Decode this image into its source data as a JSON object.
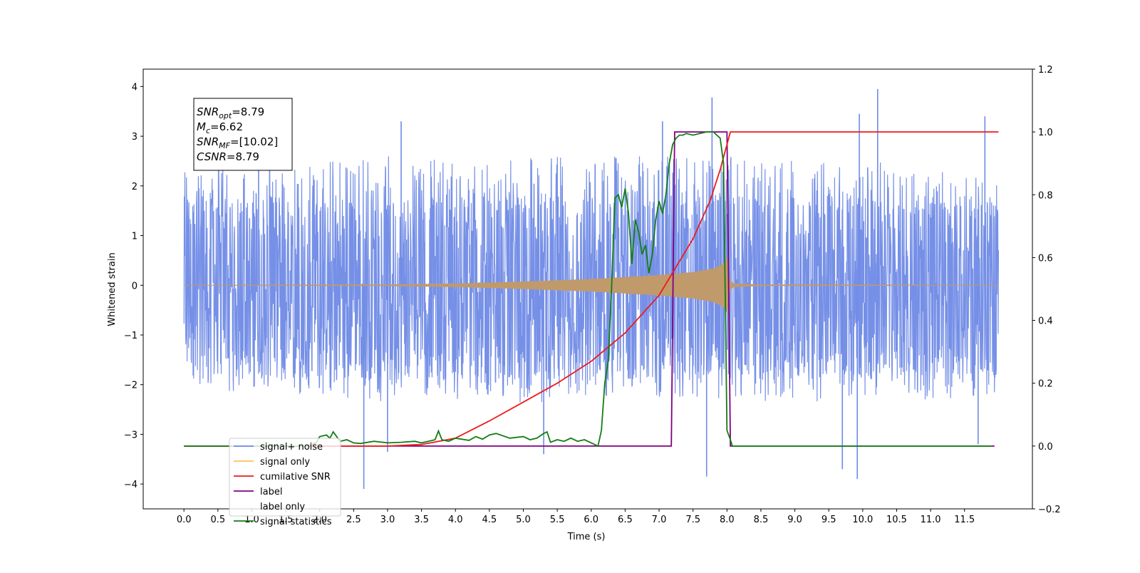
{
  "chart_data": {
    "type": "line",
    "title": "",
    "xlabel": "Time (s)",
    "ylabel": "Whitened strain",
    "xlim": [
      -0.6,
      12.5
    ],
    "ylim": [
      -4.5,
      4.35
    ],
    "y2lim": [
      -0.2,
      1.2
    ],
    "x_ticks": [
      0.0,
      0.5,
      1.0,
      1.5,
      2.0,
      2.5,
      3.0,
      3.5,
      4.0,
      4.5,
      5.0,
      5.5,
      6.0,
      6.5,
      7.0,
      7.5,
      8.0,
      8.5,
      9.0,
      9.5,
      10.0,
      10.5,
      11.0,
      11.5
    ],
    "x_tick_labels": [
      "0.0",
      "0.5",
      "1.0",
      "1.5",
      "2.0",
      "2.5",
      "3.0",
      "3.5",
      "4.0",
      "4.5",
      "5.0",
      "5.5",
      "6.0",
      "6.5",
      "7.0",
      "7.5",
      "8.0",
      "8.5",
      "9.0",
      "9.5",
      "10.0",
      "10.5",
      "11.0",
      "11.5"
    ],
    "y_ticks": [
      -4,
      -3,
      -2,
      -1,
      0,
      1,
      2,
      3,
      4
    ],
    "y_tick_labels": [
      "−4",
      "−3",
      "−2",
      "−1",
      "0",
      "1",
      "2",
      "3",
      "4"
    ],
    "y2_ticks": [
      -0.2,
      0.0,
      0.2,
      0.4,
      0.6,
      0.8,
      1.0,
      1.2
    ],
    "y2_tick_labels": [
      "−0.2",
      "0.0",
      "0.2",
      "0.4",
      "0.6",
      "0.8",
      "1.0",
      "1.2"
    ],
    "legend_position": "lower-left",
    "series": [
      {
        "name": "signal+ noise",
        "axis": "left",
        "color": "#6f8ae6",
        "x_range": [
          0.0,
          12.0
        ],
        "typical_band": [
          -1.9,
          1.8
        ],
        "envelope": [
          [
            0.0,
            -2.0,
            2.4
          ],
          [
            1.0,
            -2.2,
            2.5
          ],
          [
            2.0,
            -2.3,
            2.5
          ],
          [
            3.0,
            -2.4,
            2.6
          ],
          [
            4.0,
            -2.3,
            2.5
          ],
          [
            5.0,
            -2.4,
            2.6
          ],
          [
            6.0,
            -2.3,
            2.6
          ],
          [
            7.0,
            -2.3,
            2.6
          ],
          [
            8.0,
            -2.3,
            2.6
          ],
          [
            9.0,
            -2.4,
            2.5
          ],
          [
            10.0,
            -2.3,
            2.5
          ],
          [
            11.0,
            -2.3,
            2.5
          ],
          [
            12.0,
            -2.2,
            2.4
          ]
        ],
        "extreme_samples": [
          [
            1.1,
            2.75
          ],
          [
            2.65,
            -4.1
          ],
          [
            3.0,
            -3.35
          ],
          [
            3.2,
            3.3
          ],
          [
            5.3,
            -3.4
          ],
          [
            7.05,
            3.3
          ],
          [
            7.78,
            3.78
          ],
          [
            7.7,
            -3.85
          ],
          [
            9.7,
            -3.7
          ],
          [
            9.92,
            -3.9
          ],
          [
            9.95,
            3.45
          ],
          [
            10.22,
            3.95
          ],
          [
            11.8,
            3.4
          ],
          [
            11.7,
            -3.2
          ]
        ]
      },
      {
        "name": "signal only",
        "axis": "left",
        "color": "#c09a6b",
        "envelope": [
          [
            0.0,
            0.0
          ],
          [
            3.0,
            0.01
          ],
          [
            4.0,
            0.03
          ],
          [
            5.0,
            0.07
          ],
          [
            6.0,
            0.12
          ],
          [
            6.5,
            0.16
          ],
          [
            7.0,
            0.2
          ],
          [
            7.5,
            0.26
          ],
          [
            7.8,
            0.33
          ],
          [
            7.95,
            0.43
          ],
          [
            8.0,
            0.55
          ],
          [
            8.03,
            0.1
          ],
          [
            8.1,
            0.03
          ],
          [
            8.5,
            0.01
          ],
          [
            12.0,
            0.0
          ]
        ]
      },
      {
        "name": "cumilative SNR",
        "axis": "right",
        "color": "#ee1a1a",
        "x": [
          0.0,
          3.0,
          3.5,
          4.0,
          4.5,
          5.0,
          5.5,
          6.0,
          6.5,
          7.0,
          7.5,
          7.75,
          7.9,
          8.0,
          8.05,
          12.0
        ],
        "y": [
          0.0,
          0.0,
          0.005,
          0.025,
          0.08,
          0.14,
          0.2,
          0.27,
          0.36,
          0.48,
          0.66,
          0.78,
          0.88,
          0.96,
          1.0,
          1.0
        ]
      },
      {
        "name": "label",
        "axis": "right",
        "color": "#800080",
        "x": [
          0.0,
          7.18,
          7.23,
          8.0,
          8.05,
          11.94
        ],
        "y": [
          0.0,
          0.0,
          1.0,
          1.0,
          0.0,
          0.0
        ]
      },
      {
        "name": "label only",
        "axis": "right",
        "color": "#808080",
        "hidden": true
      },
      {
        "name": "signal statistics",
        "axis": "right",
        "color": "#137d13",
        "x": [
          0.0,
          1.8,
          1.95,
          2.0,
          2.1,
          2.15,
          2.2,
          2.3,
          2.4,
          2.5,
          2.6,
          2.8,
          3.0,
          3.2,
          3.4,
          3.5,
          3.6,
          3.7,
          3.75,
          3.8,
          3.9,
          4.0,
          4.2,
          4.3,
          4.4,
          4.5,
          4.6,
          4.8,
          5.0,
          5.1,
          5.2,
          5.3,
          5.35,
          5.4,
          5.5,
          5.6,
          5.7,
          5.8,
          5.9,
          6.0,
          6.1,
          6.15,
          6.2,
          6.25,
          6.3,
          6.35,
          6.4,
          6.45,
          6.5,
          6.55,
          6.6,
          6.65,
          6.7,
          6.75,
          6.8,
          6.85,
          6.9,
          6.95,
          7.0,
          7.05,
          7.1,
          7.15,
          7.2,
          7.25,
          7.3,
          7.35,
          7.4,
          7.5,
          7.6,
          7.7,
          7.8,
          7.9,
          7.95,
          8.0,
          8.05,
          8.08,
          8.12,
          8.2,
          11.9
        ],
        "y": [
          0.0,
          0.0,
          0.01,
          0.03,
          0.035,
          0.025,
          0.045,
          0.015,
          0.02,
          0.01,
          0.008,
          0.015,
          0.01,
          0.012,
          0.015,
          0.01,
          0.015,
          0.02,
          0.048,
          0.02,
          0.015,
          0.025,
          0.018,
          0.03,
          0.022,
          0.035,
          0.04,
          0.025,
          0.03,
          0.02,
          0.025,
          0.04,
          0.045,
          0.012,
          0.02,
          0.015,
          0.025,
          0.015,
          0.02,
          0.01,
          0.0,
          0.05,
          0.2,
          0.27,
          0.5,
          0.79,
          0.8,
          0.76,
          0.82,
          0.74,
          0.58,
          0.72,
          0.68,
          0.61,
          0.64,
          0.55,
          0.61,
          0.72,
          0.78,
          0.74,
          0.8,
          0.9,
          0.96,
          0.98,
          0.99,
          0.99,
          0.995,
          0.99,
          0.995,
          1.0,
          1.0,
          0.98,
          0.9,
          0.05,
          0.02,
          0.0,
          0.0,
          0.0,
          0.0
        ]
      }
    ],
    "annotation_box": [
      {
        "symbol": "SNR",
        "sub": "opt",
        "value": "=8.79"
      },
      {
        "symbol": "M",
        "sub": "c",
        "value": "=6.62"
      },
      {
        "symbol": "SNR",
        "sub": "MF",
        "value": "=[10.02]"
      },
      {
        "symbol": "CSNR",
        "sub": "",
        "value": "=8.79"
      }
    ]
  }
}
